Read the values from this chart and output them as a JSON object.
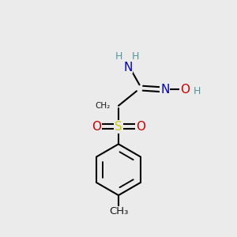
{
  "background_color": "#ebebeb",
  "atom_colors": {
    "C": "#000000",
    "H": "#4d9999",
    "N": "#0000cc",
    "O": "#cc0000",
    "S": "#cccc00"
  },
  "bond_color": "#000000",
  "bond_width": 1.5,
  "figsize": [
    3.0,
    3.0
  ],
  "dpi": 100
}
